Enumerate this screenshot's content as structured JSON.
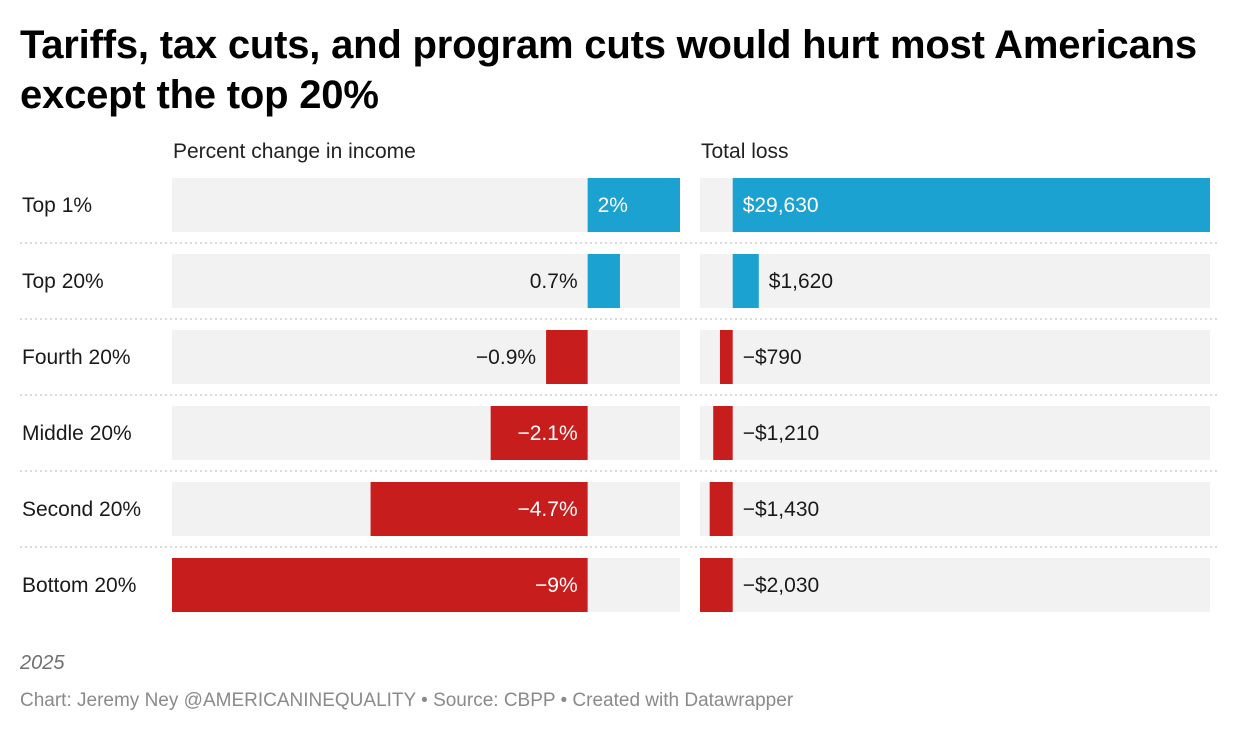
{
  "title": "Tariffs, tax cuts, and program cuts would hurt most Americans except the top 20%",
  "colors": {
    "positive": "#1ba2d0",
    "negative": "#c71d1d",
    "track": "#f2f2f2"
  },
  "chart_data": {
    "type": "bar",
    "categories": [
      "Top 1%",
      "Top 20%",
      "Fourth 20%",
      "Middle 20%",
      "Second 20%",
      "Bottom 20%"
    ],
    "series": [
      {
        "name": "Percent change in income",
        "values": [
          2,
          0.7,
          -0.9,
          -2.1,
          -4.7,
          -9
        ],
        "labels": [
          "2%",
          "0.7%",
          "−0.9%",
          "−2.1%",
          "−4.7%",
          "−9%"
        ],
        "xlim": [
          -9,
          2
        ]
      },
      {
        "name": "Total loss",
        "values": [
          29630,
          1620,
          -790,
          -1210,
          -1430,
          -2030
        ],
        "labels": [
          "$29,630",
          "$1,620",
          "−$790",
          "−$1,210",
          "−$1,430",
          "−$2,030"
        ],
        "xlim": [
          -2030,
          29630
        ]
      }
    ]
  },
  "footer": {
    "note": "2025",
    "credits": "Chart: Jeremy Ney @AMERICANINEQUALITY • Source: CBPP • Created with Datawrapper"
  }
}
